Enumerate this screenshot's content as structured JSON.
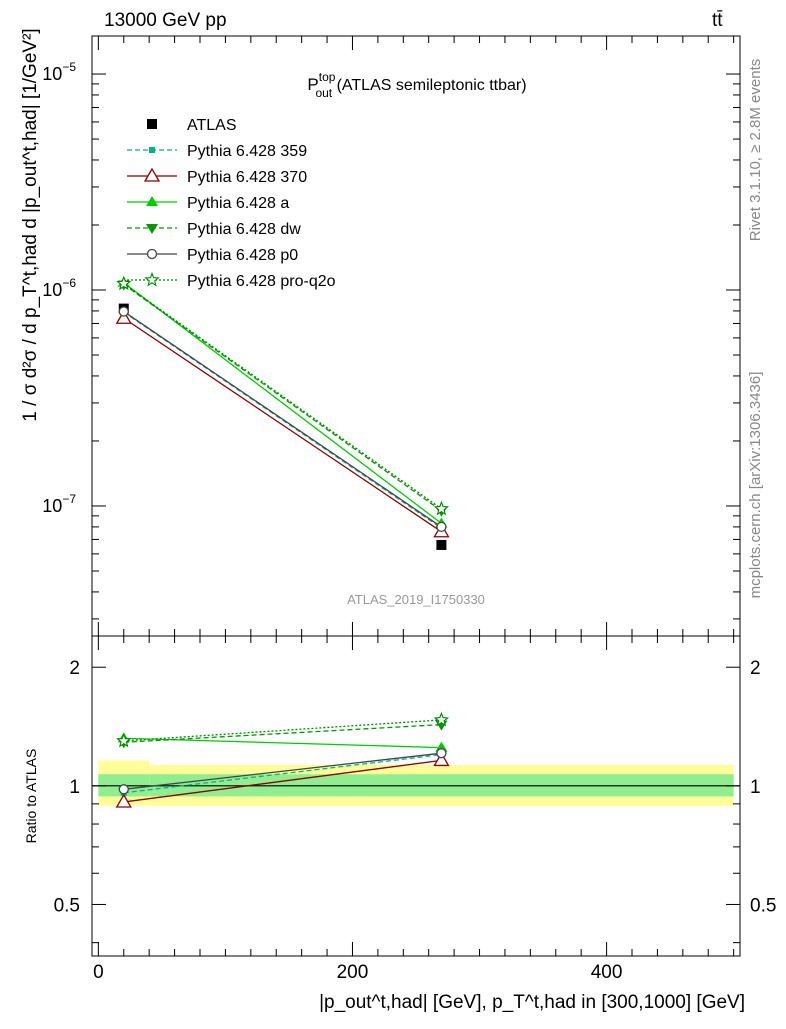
{
  "header": {
    "left": "13000 GeV pp",
    "right": "tt̄"
  },
  "side_labels": {
    "rivet": "Rivet 3.1.10, ≥ 2.8M events",
    "mcplots": "mcplots.cern.ch [arXiv:1306.3436]"
  },
  "colors": {
    "atlas": "#000000",
    "p359": "#00b386",
    "p370": "#8b0000",
    "pa": "#00cc00",
    "pdw": "#009900",
    "pp0": "#444444",
    "pq2o": "#008800",
    "band_inner": "#90ee90",
    "band_outer": "#ffff99"
  },
  "chart_data": [
    {
      "type": "line",
      "panel": "main",
      "title": "P_out^top (ATLAS semileptonic ttbar)",
      "title_main": "P",
      "title_sup": "top",
      "title_sub": "out",
      "title_rest": " (ATLAS semileptonic ttbar)",
      "ylabel": "1 / σ d²σ / d p_T^t,had d |p_out^t,had| [1/GeV²]",
      "yscale": "log",
      "ylim": [
        2.5e-08,
        1.5e-05
      ],
      "xlim": [
        -5,
        505
      ],
      "watermark": "ATLAS_2019_I1750330",
      "y_ticks": [
        {
          "value": 1e-05,
          "label_base": "10",
          "label_exp": "−5"
        },
        {
          "value": 1e-06,
          "label_base": "10",
          "label_exp": "−6"
        },
        {
          "value": 1e-07,
          "label_base": "10",
          "label_exp": "−7"
        }
      ],
      "legend": [
        {
          "label": "ATLAS",
          "key": "atlas"
        },
        {
          "label": "Pythia 6.428 359",
          "key": "p359"
        },
        {
          "label": "Pythia 6.428 370",
          "key": "p370"
        },
        {
          "label": "Pythia 6.428 a",
          "key": "pa"
        },
        {
          "label": "Pythia 6.428 dw",
          "key": "pdw"
        },
        {
          "label": "Pythia 6.428 p0",
          "key": "pp0"
        },
        {
          "label": "Pythia 6.428 pro-q2o",
          "key": "pq2o"
        }
      ],
      "x": [
        20,
        270
      ],
      "series": [
        {
          "name": "ATLAS",
          "key": "atlas",
          "values": [
            8.2e-07,
            6.6e-08
          ]
        },
        {
          "name": "Pythia 6.428 359",
          "key": "p359",
          "values": [
            7.9e-07,
            7.9e-08
          ]
        },
        {
          "name": "Pythia 6.428 370",
          "key": "p370",
          "values": [
            7.4e-07,
            7.6e-08
          ]
        },
        {
          "name": "Pythia 6.428 a",
          "key": "pa",
          "values": [
            1.08e-06,
            8.3e-08
          ]
        },
        {
          "name": "Pythia 6.428 dw",
          "key": "pdw",
          "values": [
            1.06e-06,
            9.5e-08
          ]
        },
        {
          "name": "Pythia 6.428 p0",
          "key": "pp0",
          "values": [
            7.95e-07,
            8e-08
          ]
        },
        {
          "name": "Pythia 6.428 pro-q2o",
          "key": "pq2o",
          "values": [
            1.07e-06,
            9.7e-08
          ]
        }
      ]
    },
    {
      "type": "line",
      "panel": "ratio",
      "ylabel": "Ratio to ATLAS",
      "yscale": "log",
      "ylim": [
        0.37,
        2.4
      ],
      "xlim": [
        -5,
        505
      ],
      "xlabel": "|p_out^t,had| [GeV], p_T^t,had in [300,1000] [GeV]",
      "x_ticks": [
        0,
        200,
        400
      ],
      "y_ticks": [
        0.5,
        1,
        2
      ],
      "bands": [
        {
          "x": [
            0,
            40
          ],
          "inner": [
            0.94,
            1.07
          ],
          "outer": [
            0.89,
            1.16
          ]
        },
        {
          "x": [
            40,
            500
          ],
          "inner": [
            0.94,
            1.07
          ],
          "outer": [
            0.89,
            1.13
          ]
        }
      ],
      "x": [
        20,
        270
      ],
      "series": [
        {
          "name": "Pythia 6.428 359",
          "key": "p359",
          "values": [
            0.96,
            1.2
          ]
        },
        {
          "name": "Pythia 6.428 370",
          "key": "p370",
          "values": [
            0.91,
            1.16
          ]
        },
        {
          "name": "Pythia 6.428 a",
          "key": "pa",
          "values": [
            1.32,
            1.25
          ]
        },
        {
          "name": "Pythia 6.428 dw",
          "key": "pdw",
          "values": [
            1.29,
            1.43
          ]
        },
        {
          "name": "Pythia 6.428 p0",
          "key": "pp0",
          "values": [
            0.98,
            1.21
          ]
        },
        {
          "name": "Pythia 6.428 pro-q2o",
          "key": "pq2o",
          "values": [
            1.3,
            1.47
          ]
        }
      ]
    }
  ]
}
